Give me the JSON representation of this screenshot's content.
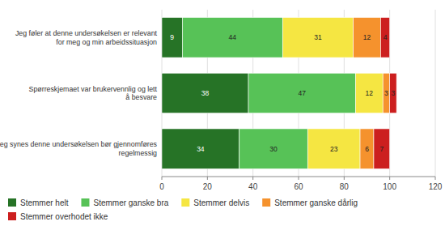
{
  "chart_data": {
    "type": "bar",
    "orientation": "horizontal",
    "stacked": true,
    "categories": [
      "Jeg føler at denne undersøkelsen er relevant\nfor meg og min arbeidssituasjon",
      "Spørreskjemaet var brukervennlig og lett\nå besvare",
      "Jeg synes denne undersøkelsen bør gjennomføres\nregelmessig"
    ],
    "series": [
      {
        "name": "Stemmer helt",
        "color": "#267326",
        "values": [
          9,
          38,
          34
        ]
      },
      {
        "name": "Stemmer ganske bra",
        "color": "#57c257",
        "values": [
          44,
          47,
          30
        ]
      },
      {
        "name": "Stemmer delvis",
        "color": "#f5e642",
        "values": [
          31,
          12,
          23
        ]
      },
      {
        "name": "Stemmer ganske dårlig",
        "color": "#f5922d",
        "values": [
          12,
          3,
          6
        ]
      },
      {
        "name": "Stemmer overhodet ikke",
        "color": "#cc1f1f",
        "values": [
          4,
          3,
          7
        ]
      }
    ],
    "xlim": [
      0,
      120
    ],
    "xticks": [
      0,
      20,
      40,
      60,
      80,
      100,
      120
    ],
    "grid": true,
    "legend": "lower left",
    "data_labels": true
  }
}
